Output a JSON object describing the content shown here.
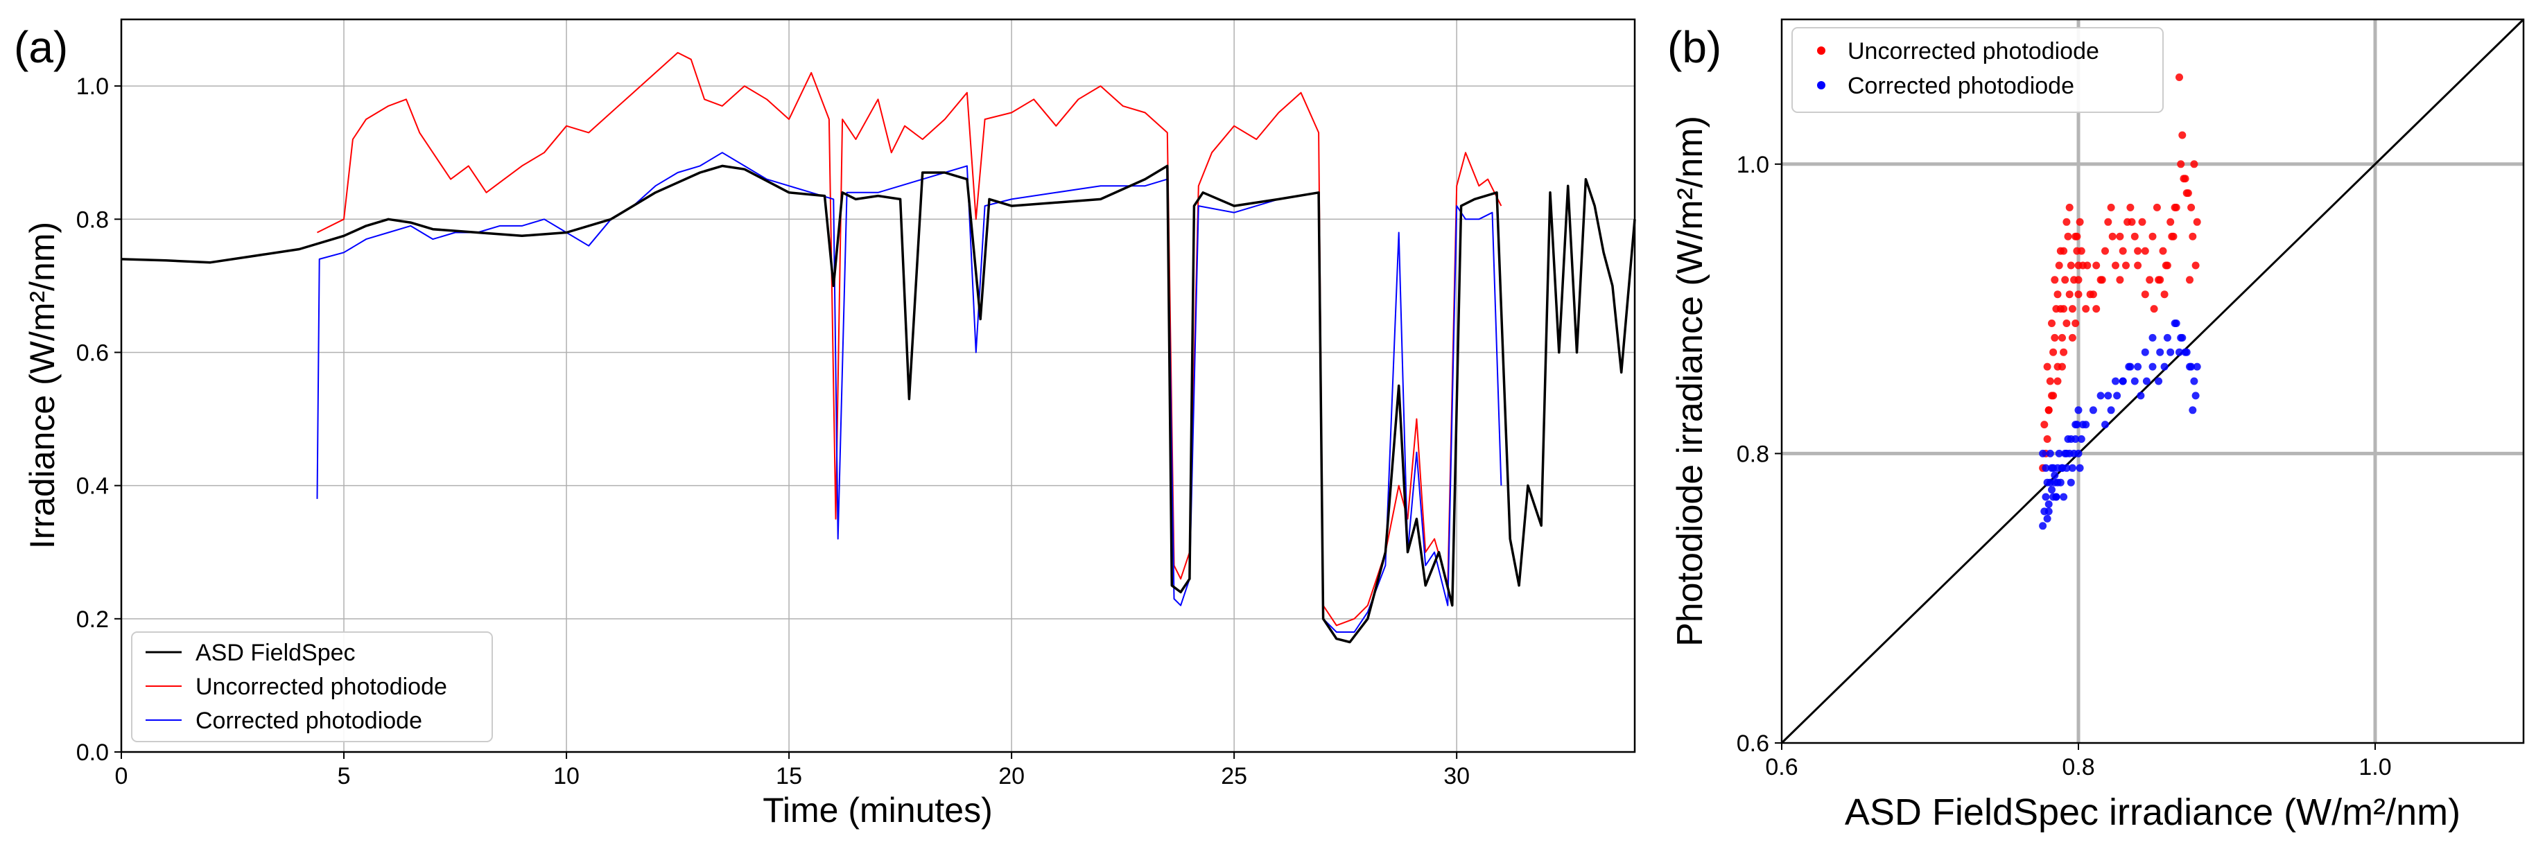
{
  "figure": {
    "colors": {
      "asd": "#000000",
      "uncorrected": "#ff0000",
      "corrected": "#0000ff",
      "grid": "#b0b0b0",
      "grid_b": "#b5b5b5"
    }
  },
  "chart_data": [
    {
      "type": "line",
      "panel_label": "(a)",
      "title": "",
      "xlabel": "Time (minutes)",
      "ylabel": "Irradiance (W/m²/nm)",
      "xlim": [
        0,
        34
      ],
      "ylim": [
        0,
        1.1
      ],
      "xticks": [
        0,
        5,
        10,
        15,
        20,
        25,
        30
      ],
      "xtick_labels": [
        "0",
        "5",
        "10",
        "15",
        "20",
        "25",
        "30"
      ],
      "yticks": [
        0.0,
        0.2,
        0.4,
        0.6,
        0.8,
        1.0
      ],
      "ytick_labels": [
        "0.0",
        "0.2",
        "0.4",
        "0.6",
        "0.8",
        "1.0"
      ],
      "grid": true,
      "legend_position": "bottom-left",
      "series": [
        {
          "name": "ASD FieldSpec",
          "color": "#000000",
          "x": [
            0,
            1,
            2,
            3,
            4,
            5,
            5.5,
            6,
            6.5,
            7,
            8,
            9,
            10,
            11,
            12,
            13,
            13.5,
            14,
            15,
            15.8,
            16.0,
            16.2,
            16.5,
            17,
            17.5,
            17.7,
            18,
            18.5,
            19,
            19.3,
            19.5,
            20,
            21,
            22,
            23,
            23.5,
            23.6,
            23.8,
            24.0,
            24.1,
            24.3,
            25,
            26,
            26.9,
            27.0,
            27.3,
            27.6,
            28,
            28.4,
            28.7,
            28.9,
            29.1,
            29.3,
            29.6,
            29.9,
            30.1,
            30.4,
            30.9,
            31.2,
            31.4,
            31.6,
            31.9,
            32.1,
            32.3,
            32.5,
            32.7,
            32.9,
            33.1,
            33.3,
            33.5,
            33.7,
            34.0
          ],
          "y": [
            0.74,
            0.738,
            0.735,
            0.745,
            0.755,
            0.775,
            0.79,
            0.8,
            0.795,
            0.785,
            0.78,
            0.775,
            0.78,
            0.8,
            0.84,
            0.87,
            0.88,
            0.875,
            0.84,
            0.835,
            0.7,
            0.84,
            0.83,
            0.835,
            0.83,
            0.53,
            0.87,
            0.87,
            0.86,
            0.65,
            0.83,
            0.82,
            0.825,
            0.83,
            0.86,
            0.88,
            0.25,
            0.24,
            0.26,
            0.82,
            0.84,
            0.82,
            0.83,
            0.84,
            0.2,
            0.17,
            0.165,
            0.2,
            0.3,
            0.55,
            0.3,
            0.35,
            0.25,
            0.3,
            0.22,
            0.82,
            0.83,
            0.84,
            0.32,
            0.25,
            0.4,
            0.34,
            0.84,
            0.6,
            0.85,
            0.6,
            0.86,
            0.82,
            0.75,
            0.7,
            0.57,
            0.8
          ]
        },
        {
          "name": "Uncorrected photodiode",
          "color": "#ff0000",
          "x": [
            4.4,
            5.0,
            5.2,
            5.5,
            6.0,
            6.4,
            6.7,
            7.0,
            7.4,
            7.8,
            8.2,
            8.6,
            9.0,
            9.5,
            10.0,
            10.5,
            11.0,
            11.5,
            12.0,
            12.5,
            12.8,
            13.1,
            13.5,
            14.0,
            14.5,
            15.0,
            15.5,
            15.9,
            16.05,
            16.2,
            16.5,
            17.0,
            17.3,
            17.6,
            18.0,
            18.5,
            19.0,
            19.2,
            19.4,
            20.0,
            20.5,
            21.0,
            21.5,
            22.0,
            22.5,
            23.0,
            23.5,
            23.65,
            23.8,
            24.0,
            24.2,
            24.5,
            25.0,
            25.5,
            26.0,
            26.5,
            26.9,
            27.0,
            27.3,
            27.7,
            28.0,
            28.4,
            28.7,
            28.9,
            29.1,
            29.3,
            29.5,
            29.8,
            30.0,
            30.2,
            30.5,
            30.7,
            31.0
          ],
          "y": [
            0.78,
            0.8,
            0.92,
            0.95,
            0.97,
            0.98,
            0.93,
            0.9,
            0.86,
            0.88,
            0.84,
            0.86,
            0.88,
            0.9,
            0.94,
            0.93,
            0.96,
            0.99,
            1.02,
            1.05,
            1.04,
            0.98,
            0.97,
            1.0,
            0.98,
            0.95,
            1.02,
            0.95,
            0.35,
            0.95,
            0.92,
            0.98,
            0.9,
            0.94,
            0.92,
            0.95,
            0.99,
            0.8,
            0.95,
            0.96,
            0.98,
            0.94,
            0.98,
            1.0,
            0.97,
            0.96,
            0.93,
            0.28,
            0.26,
            0.3,
            0.85,
            0.9,
            0.94,
            0.92,
            0.96,
            0.99,
            0.93,
            0.22,
            0.19,
            0.2,
            0.22,
            0.3,
            0.4,
            0.35,
            0.5,
            0.3,
            0.32,
            0.25,
            0.85,
            0.9,
            0.85,
            0.86,
            0.82
          ]
        },
        {
          "name": "Corrected photodiode",
          "color": "#0000ff",
          "x": [
            4.4,
            4.45,
            5.0,
            5.5,
            6.0,
            6.5,
            7.0,
            7.5,
            8.0,
            8.5,
            9.0,
            9.5,
            10.0,
            10.5,
            11.0,
            11.5,
            12.0,
            12.5,
            13.0,
            13.5,
            14.0,
            14.5,
            15.0,
            15.5,
            16.0,
            16.1,
            16.3,
            17.0,
            17.5,
            18.0,
            18.5,
            19.0,
            19.2,
            19.4,
            20.0,
            21.0,
            22.0,
            23.0,
            23.5,
            23.65,
            23.8,
            24.0,
            24.2,
            25.0,
            26.0,
            26.9,
            27.0,
            27.3,
            27.7,
            28.0,
            28.4,
            28.7,
            28.9,
            29.1,
            29.3,
            29.5,
            29.8,
            30.0,
            30.2,
            30.5,
            30.8,
            31.0
          ],
          "y": [
            0.38,
            0.74,
            0.75,
            0.77,
            0.78,
            0.79,
            0.77,
            0.78,
            0.78,
            0.79,
            0.79,
            0.8,
            0.78,
            0.76,
            0.8,
            0.82,
            0.85,
            0.87,
            0.88,
            0.9,
            0.88,
            0.86,
            0.85,
            0.84,
            0.83,
            0.32,
            0.84,
            0.84,
            0.85,
            0.86,
            0.87,
            0.88,
            0.6,
            0.82,
            0.83,
            0.84,
            0.85,
            0.85,
            0.86,
            0.23,
            0.22,
            0.26,
            0.82,
            0.81,
            0.83,
            0.84,
            0.2,
            0.18,
            0.18,
            0.21,
            0.28,
            0.78,
            0.3,
            0.45,
            0.28,
            0.3,
            0.22,
            0.82,
            0.8,
            0.8,
            0.81,
            0.4
          ]
        }
      ]
    },
    {
      "type": "scatter",
      "panel_label": "(b)",
      "title": "",
      "xlabel": "ASD FieldSpec irradiance (W/m²/nm)",
      "ylabel": "Photodiode irradiance (W/m²/nm)",
      "xlim": [
        0.6,
        1.1
      ],
      "ylim": [
        0.6,
        1.1
      ],
      "xticks": [
        0.6,
        0.8,
        1.0
      ],
      "xtick_labels": [
        "0.6",
        "0.8",
        "1.0"
      ],
      "yticks": [
        0.6,
        0.8,
        1.0
      ],
      "ytick_labels": [
        "0.6",
        "0.8",
        "1.0"
      ],
      "grid": true,
      "legend_position": "top-left",
      "reference_line": {
        "x": [
          0.6,
          1.1
        ],
        "y": [
          0.6,
          1.1
        ]
      },
      "series": [
        {
          "name": "Uncorrected photodiode",
          "color": "#ff0000",
          "x": [
            0.776,
            0.778,
            0.779,
            0.777,
            0.78,
            0.782,
            0.781,
            0.779,
            0.783,
            0.784,
            0.782,
            0.785,
            0.786,
            0.784,
            0.787,
            0.788,
            0.786,
            0.789,
            0.79,
            0.788,
            0.791,
            0.792,
            0.79,
            0.793,
            0.794,
            0.792,
            0.795,
            0.796,
            0.794,
            0.797,
            0.798,
            0.796,
            0.799,
            0.8,
            0.801,
            0.798,
            0.8,
            0.802,
            0.799,
            0.803,
            0.78,
            0.783,
            0.786,
            0.789,
            0.79,
            0.8,
            0.805,
            0.81,
            0.812,
            0.815,
            0.818,
            0.82,
            0.823,
            0.825,
            0.828,
            0.83,
            0.833,
            0.835,
            0.838,
            0.84,
            0.843,
            0.845,
            0.848,
            0.85,
            0.853,
            0.855,
            0.858,
            0.86,
            0.863,
            0.865,
            0.868,
            0.87,
            0.872,
            0.874,
            0.876,
            0.878,
            0.88,
            0.877,
            0.879,
            0.875,
            0.873,
            0.871,
            0.869,
            0.866,
            0.864,
            0.862,
            0.859,
            0.857,
            0.854,
            0.851,
            0.845,
            0.84,
            0.836,
            0.832,
            0.828,
            0.822,
            0.816,
            0.812,
            0.808,
            0.806
          ],
          "y": [
            0.79,
            0.8,
            0.81,
            0.82,
            0.83,
            0.84,
            0.85,
            0.86,
            0.87,
            0.88,
            0.89,
            0.9,
            0.91,
            0.92,
            0.93,
            0.94,
            0.85,
            0.86,
            0.87,
            0.9,
            0.92,
            0.89,
            0.94,
            0.95,
            0.91,
            0.96,
            0.93,
            0.88,
            0.97,
            0.92,
            0.95,
            0.9,
            0.94,
            0.93,
            0.96,
            0.89,
            0.91,
            0.94,
            0.95,
            0.93,
            0.83,
            0.84,
            0.86,
            0.88,
            0.9,
            0.92,
            0.9,
            0.91,
            0.93,
            0.92,
            0.94,
            0.96,
            0.95,
            0.93,
            0.92,
            0.94,
            0.96,
            0.97,
            0.95,
            0.93,
            0.96,
            0.94,
            0.92,
            0.95,
            0.97,
            0.92,
            0.91,
            0.93,
            0.95,
            0.97,
            1.06,
            1.02,
            0.99,
            0.98,
            0.97,
            1.0,
            0.96,
            0.95,
            0.93,
            0.92,
            0.98,
            0.99,
            1.0,
            0.97,
            0.95,
            0.96,
            0.93,
            0.94,
            0.92,
            0.9,
            0.91,
            0.94,
            0.96,
            0.93,
            0.95,
            0.97,
            0.92,
            0.9,
            0.91,
            0.93
          ]
        },
        {
          "name": "Corrected photodiode",
          "color": "#0000ff",
          "x": [
            0.776,
            0.777,
            0.778,
            0.779,
            0.78,
            0.781,
            0.782,
            0.783,
            0.784,
            0.785,
            0.776,
            0.778,
            0.779,
            0.781,
            0.782,
            0.784,
            0.785,
            0.786,
            0.787,
            0.788,
            0.789,
            0.79,
            0.791,
            0.792,
            0.793,
            0.794,
            0.795,
            0.796,
            0.797,
            0.798,
            0.799,
            0.8,
            0.801,
            0.802,
            0.803,
            0.78,
            0.783,
            0.786,
            0.789,
            0.792,
            0.795,
            0.798,
            0.8,
            0.805,
            0.81,
            0.815,
            0.82,
            0.825,
            0.83,
            0.835,
            0.84,
            0.845,
            0.85,
            0.855,
            0.86,
            0.865,
            0.868,
            0.87,
            0.873,
            0.876,
            0.878,
            0.88,
            0.879,
            0.877,
            0.875,
            0.872,
            0.869,
            0.866,
            0.862,
            0.858,
            0.854,
            0.85,
            0.846,
            0.842,
            0.838,
            0.834,
            0.83,
            0.826,
            0.822,
            0.818
          ],
          "y": [
            0.75,
            0.76,
            0.77,
            0.755,
            0.765,
            0.78,
            0.775,
            0.79,
            0.785,
            0.77,
            0.8,
            0.79,
            0.78,
            0.8,
            0.79,
            0.78,
            0.77,
            0.79,
            0.8,
            0.78,
            0.79,
            0.77,
            0.8,
            0.79,
            0.81,
            0.8,
            0.78,
            0.79,
            0.8,
            0.81,
            0.82,
            0.8,
            0.79,
            0.81,
            0.82,
            0.76,
            0.77,
            0.78,
            0.79,
            0.8,
            0.81,
            0.82,
            0.83,
            0.82,
            0.83,
            0.84,
            0.84,
            0.85,
            0.85,
            0.86,
            0.86,
            0.87,
            0.88,
            0.87,
            0.88,
            0.89,
            0.87,
            0.88,
            0.87,
            0.86,
            0.85,
            0.86,
            0.84,
            0.83,
            0.86,
            0.87,
            0.88,
            0.89,
            0.87,
            0.86,
            0.85,
            0.86,
            0.85,
            0.84,
            0.85,
            0.86,
            0.85,
            0.84,
            0.83,
            0.82
          ]
        }
      ]
    }
  ]
}
